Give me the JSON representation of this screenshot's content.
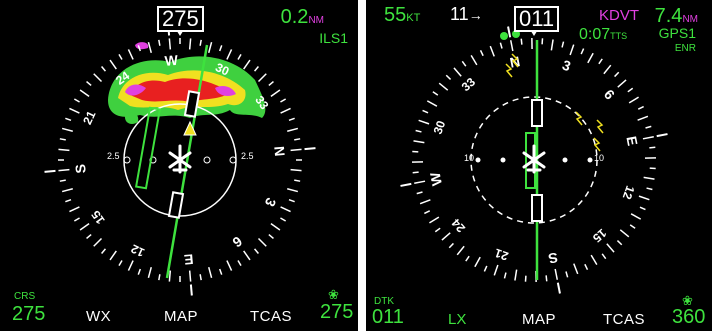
{
  "left": {
    "heading": "275",
    "range_value": "0.2",
    "range_unit": "NM",
    "nav_source": "ILS1",
    "crs_label": "CRS",
    "crs_value": "275",
    "softkeys": [
      "WX",
      "MAP",
      "TCAS"
    ],
    "bottom_right_value": "275",
    "range_ring_labels": [
      "2.5",
      "2.5"
    ],
    "compass_labels": [
      "N",
      "3",
      "6",
      "E",
      "12",
      "15",
      "S",
      "21",
      "24",
      "W",
      "30",
      "33"
    ]
  },
  "right": {
    "ground_speed": "55",
    "ground_speed_unit": "KT",
    "wind": "11",
    "heading": "011",
    "waypoint": "KDVT",
    "distance_value": "7.4",
    "distance_unit": "NM",
    "time_to_go": "0:07",
    "time_unit": "TTS",
    "nav_source": "GPS1",
    "nav_mode": "ENR",
    "dtk_label": "DTK",
    "dtk_value": "011",
    "softkeys": [
      "LX",
      "MAP",
      "TCAS"
    ],
    "bottom_right_value": "360",
    "range_ring_labels": [
      "10",
      "10"
    ],
    "compass_labels": [
      "N",
      "3",
      "6",
      "E",
      "12",
      "15",
      "S",
      "21",
      "24",
      "W",
      "30",
      "33"
    ]
  },
  "colors": {
    "background": "#000000",
    "text_primary": "#ffffff",
    "accent_green": "#3ee23e",
    "accent_magenta": "#e040e0",
    "lightning_yellow": "#f0e020"
  }
}
